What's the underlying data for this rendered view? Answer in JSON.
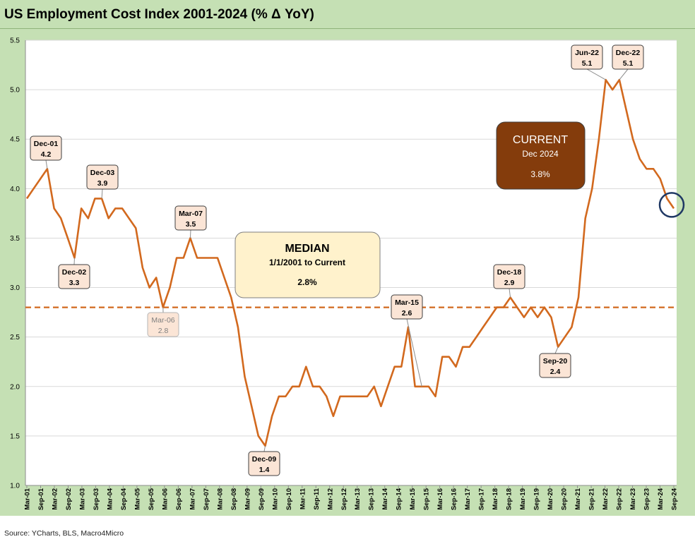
{
  "title": "US Employment Cost Index 2001-2024 (% Δ YoY)",
  "source": "Source: YCharts, BLS, Macro4Micro",
  "colors": {
    "line": "#d2691e",
    "median_line": "#d2691e",
    "frame": "#c5e0b4",
    "grid": "#d9d9d9",
    "label_fill": "#fbe5d6",
    "median_box_fill": "#fff2cc",
    "current_box_fill": "#843c0c",
    "circle": "#1f3864"
  },
  "chart_data": {
    "type": "line",
    "title": "US Employment Cost Index 2001-2024 (% Δ YoY)",
    "xlabel": "",
    "ylabel": "",
    "ylim": [
      1.0,
      5.5
    ],
    "yticks": [
      "1.0",
      "1.5",
      "2.0",
      "2.5",
      "3.0",
      "3.5",
      "4.0",
      "4.5",
      "5.0",
      "5.5"
    ],
    "xticks": [
      "Mar-01",
      "Sep-01",
      "Mar-02",
      "Sep-02",
      "Mar-03",
      "Sep-03",
      "Mar-04",
      "Sep-04",
      "Mar-05",
      "Sep-05",
      "Mar-06",
      "Sep-06",
      "Mar-07",
      "Sep-07",
      "Mar-08",
      "Sep-08",
      "Mar-09",
      "Sep-09",
      "Mar-10",
      "Sep-10",
      "Mar-11",
      "Sep-11",
      "Mar-12",
      "Sep-12",
      "Mar-13",
      "Sep-13",
      "Mar-14",
      "Sep-14",
      "Mar-15",
      "Sep-15",
      "Mar-16",
      "Sep-16",
      "Mar-17",
      "Sep-17",
      "Mar-18",
      "Sep-18",
      "Mar-19",
      "Sep-19",
      "Mar-20",
      "Sep-20",
      "Mar-21",
      "Sep-21",
      "Mar-22",
      "Sep-22",
      "Mar-23",
      "Sep-23",
      "Mar-24",
      "Sep-24"
    ],
    "series": [
      {
        "values": [
          3.9,
          4.0,
          4.1,
          4.2,
          3.8,
          3.7,
          3.5,
          3.3,
          3.8,
          3.7,
          3.9,
          3.9,
          3.7,
          3.8,
          3.8,
          3.7,
          3.6,
          3.2,
          3.0,
          3.1,
          2.8,
          3.0,
          3.3,
          3.3,
          3.5,
          3.3,
          3.3,
          3.3,
          3.3,
          3.1,
          2.9,
          2.6,
          2.1,
          1.8,
          1.5,
          1.4,
          1.7,
          1.9,
          1.9,
          2.0,
          2.0,
          2.2,
          2.0,
          2.0,
          1.9,
          1.7,
          1.9,
          1.9,
          1.9,
          1.9,
          1.9,
          2.0,
          1.8,
          2.0,
          2.2,
          2.2,
          2.6,
          2.0,
          2.0,
          2.0,
          1.9,
          2.3,
          2.3,
          2.2,
          2.4,
          2.4,
          2.5,
          2.6,
          2.7,
          2.8,
          2.8,
          2.9,
          2.8,
          2.7,
          2.8,
          2.7,
          2.8,
          2.7,
          2.4,
          2.5,
          2.6,
          2.9,
          3.7,
          4.0,
          4.5,
          5.1,
          5.0,
          5.1,
          4.8,
          4.5,
          4.3,
          4.2,
          4.2,
          4.1,
          3.9,
          3.8
        ]
      }
    ],
    "median": 2.8,
    "annotations": [
      {
        "label": "Dec-01",
        "value": "4.2"
      },
      {
        "label": "Dec-02",
        "value": "3.3"
      },
      {
        "label": "Dec-03",
        "value": "3.9"
      },
      {
        "label": "Mar-06",
        "value": "2.8"
      },
      {
        "label": "Mar-07",
        "value": "3.5"
      },
      {
        "label": "Dec-09",
        "value": "1.4"
      },
      {
        "label": "Mar-15",
        "value": "2.6"
      },
      {
        "label": "Dec-18",
        "value": "2.9"
      },
      {
        "label": "Sep-20",
        "value": "2.4"
      },
      {
        "label": "Jun-22",
        "value": "5.1"
      },
      {
        "label": "Dec-22",
        "value": "5.1"
      }
    ],
    "median_box": {
      "heading": "MEDIAN",
      "subheading": "1/1/2001 to Current",
      "value": "2.8%"
    },
    "current_box": {
      "heading": "CURRENT",
      "subheading": "Dec 2024",
      "value": "3.8%"
    },
    "grid": true,
    "legend": "none"
  }
}
